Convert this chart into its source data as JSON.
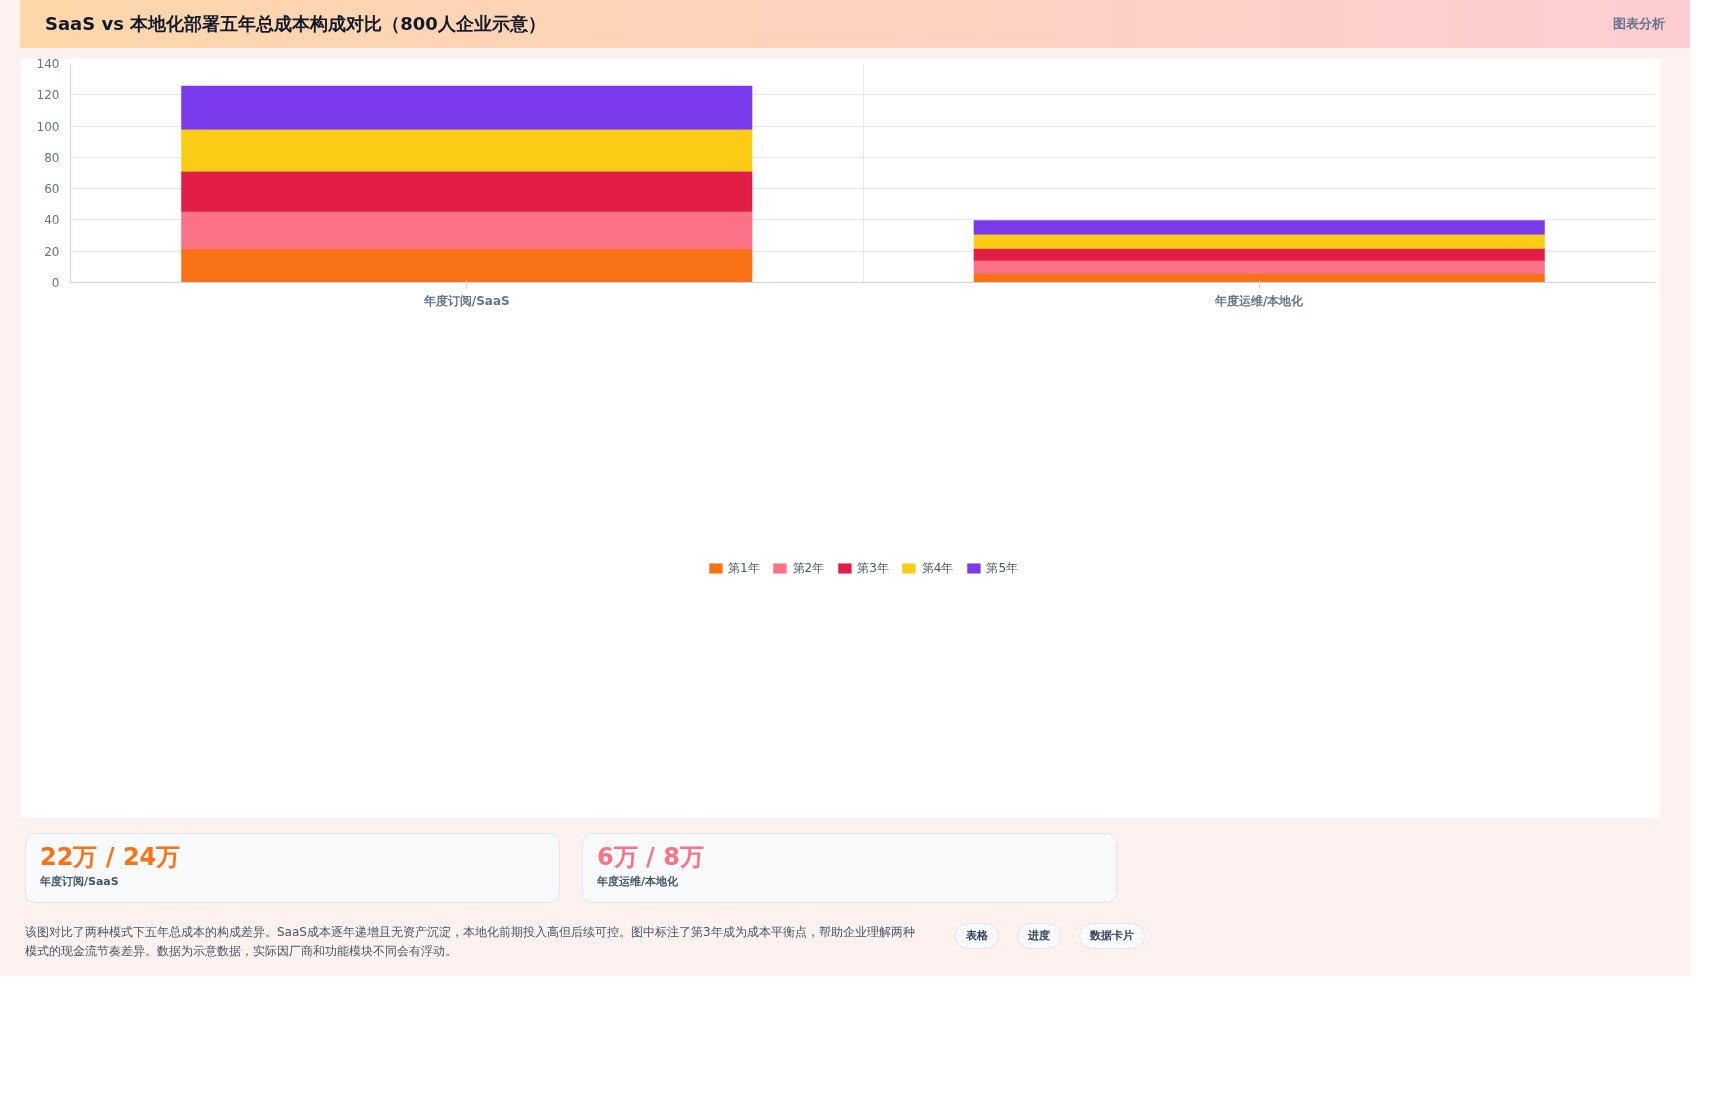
{
  "chart_data": {
    "type": "bar",
    "title": "SaaS vs 本地化部署五年总成本构成对比（800人企业示意）",
    "subtitle": "图表分析",
    "categories": [
      "年度订阅/SaaS",
      "年度运维/本地化"
    ],
    "stacked": true,
    "series": [
      {
        "name": "第1年",
        "color": "#f97316",
        "values": [
          21.6,
          5.8
        ]
      },
      {
        "name": "第2年",
        "color": "#fb7185",
        "values": [
          23.8,
          8.2
        ]
      },
      {
        "name": "第3年",
        "color": "#e11d48",
        "values": [
          25.7,
          7.8
        ]
      },
      {
        "name": "第4年",
        "color": "#facc15",
        "values": [
          26.8,
          9.0
        ]
      },
      {
        "name": "第5年",
        "color": "#7c3aed",
        "values": [
          27.7,
          8.8
        ]
      }
    ],
    "ylim": [
      0,
      140
    ],
    "yticks": [
      0,
      20,
      40,
      60,
      80,
      100,
      120,
      140
    ],
    "grid": true,
    "legend": "bottom",
    "annotations": [
      "22万 / 24万",
      "年度订阅/SaaS",
      "6万 / 8万",
      "年度运维/本地化",
      "该图对比了两种模式下五年总成本的构成差异。SaaS成本逐年递增且无资产沉淀，本地化前期投入高但后续可控。图中标注了第3年成为成本平衡点，帮助企业理解两种模式的现金流节奏差异。数据为示意数据，实际因厂商和功能模块不同会有浮动。",
      "表格",
      "进度",
      "数据卡片"
    ]
  }
}
